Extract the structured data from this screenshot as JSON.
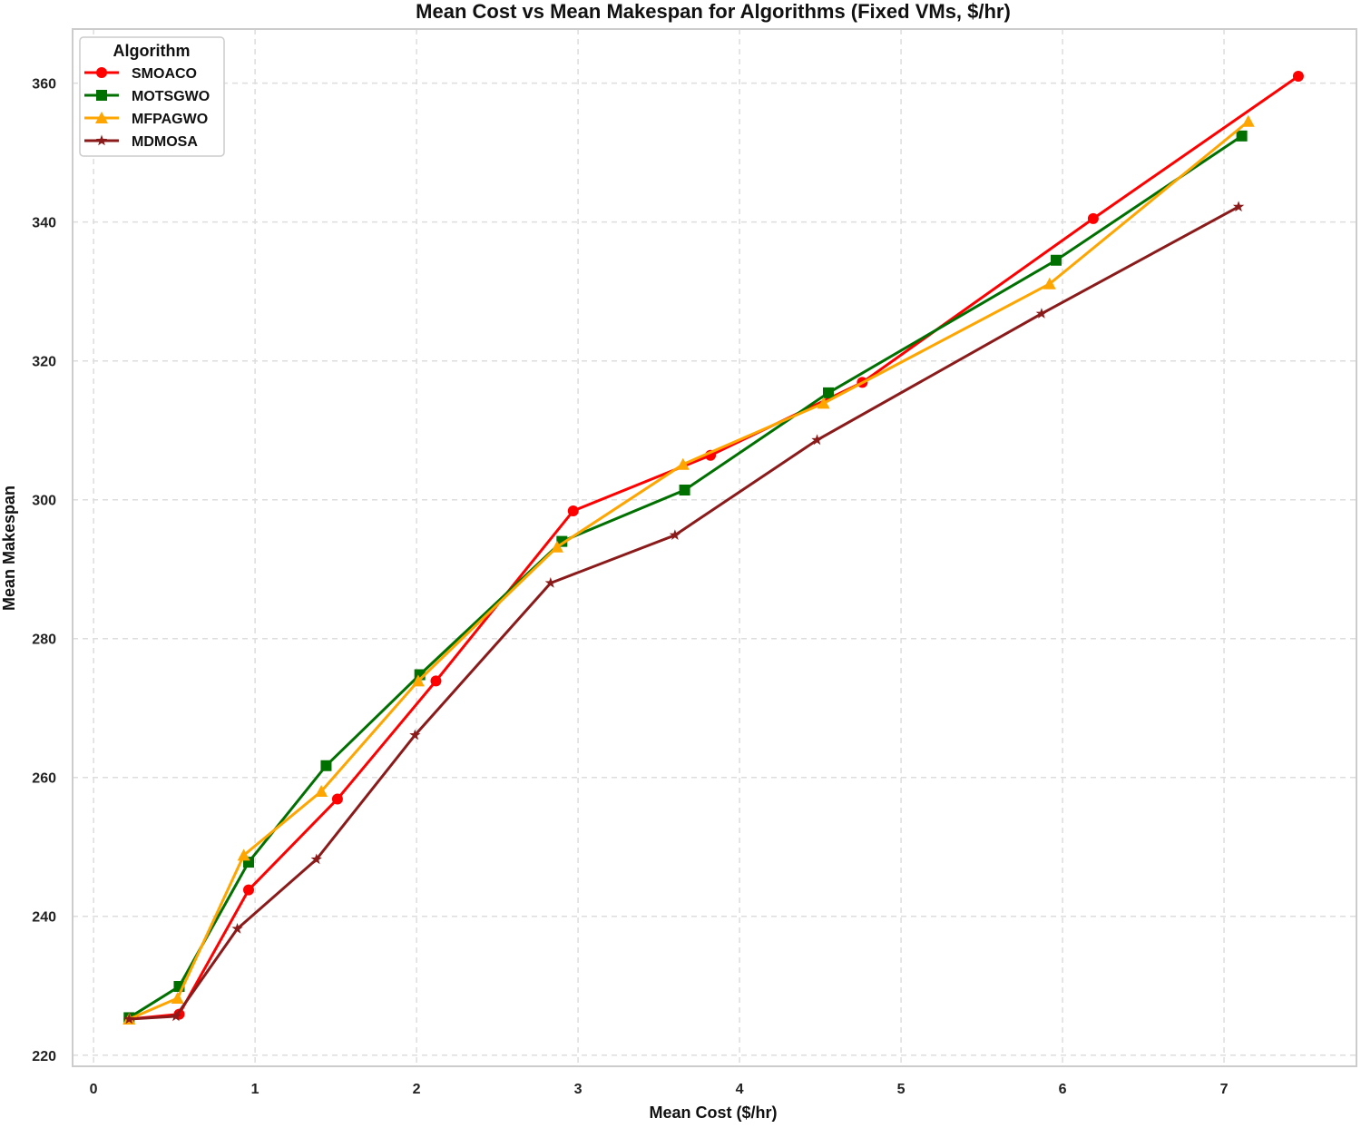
{
  "chart_data": {
    "type": "line",
    "title": "Mean Cost vs Mean Makespan for Algorithms (Fixed VMs, $/hr)",
    "xlabel": "Mean Cost ($/hr)",
    "ylabel": "Mean Makespan",
    "xlim": [
      -0.13,
      7.82
    ],
    "ylim": [
      218.4,
      367.8
    ],
    "xticks": [
      0,
      1,
      2,
      3,
      4,
      5,
      6,
      7
    ],
    "yticks": [
      220,
      240,
      260,
      280,
      300,
      320,
      340,
      360
    ],
    "grid": true,
    "legend": {
      "title": "Algorithm",
      "placement": "top-left"
    },
    "series": [
      {
        "name": "SMOACO",
        "color": "#ff0000",
        "marker": "circle",
        "x": [
          0.22,
          0.53,
          0.96,
          1.51,
          2.12,
          2.97,
          3.82,
          4.76,
          6.19,
          7.46
        ],
        "y": [
          225.2,
          225.9,
          243.8,
          256.9,
          273.9,
          298.4,
          306.4,
          316.9,
          340.5,
          361.0
        ]
      },
      {
        "name": "MOTSGWO",
        "color": "#007000",
        "marker": "square",
        "x": [
          0.22,
          0.53,
          0.96,
          1.44,
          2.02,
          2.9,
          3.66,
          4.55,
          5.96,
          7.11
        ],
        "y": [
          225.4,
          229.9,
          247.8,
          261.7,
          274.8,
          294.0,
          301.4,
          315.4,
          334.5,
          352.4
        ]
      },
      {
        "name": "MFPAGWO",
        "color": "#ffa500",
        "marker": "triangle",
        "x": [
          0.22,
          0.52,
          0.93,
          1.41,
          2.01,
          2.87,
          3.65,
          4.52,
          5.92,
          7.15
        ],
        "y": [
          225.2,
          228.2,
          248.8,
          258.0,
          273.9,
          293.2,
          305.1,
          313.9,
          331.1,
          354.5
        ]
      },
      {
        "name": "MDMOSA",
        "color": "#8b1a1a",
        "marker": "star",
        "x": [
          0.22,
          0.51,
          0.89,
          1.38,
          1.99,
          2.83,
          3.6,
          4.48,
          5.87,
          7.09
        ],
        "y": [
          225.2,
          225.6,
          238.2,
          248.2,
          266.1,
          288.0,
          294.9,
          308.6,
          326.8,
          342.2
        ]
      }
    ]
  }
}
